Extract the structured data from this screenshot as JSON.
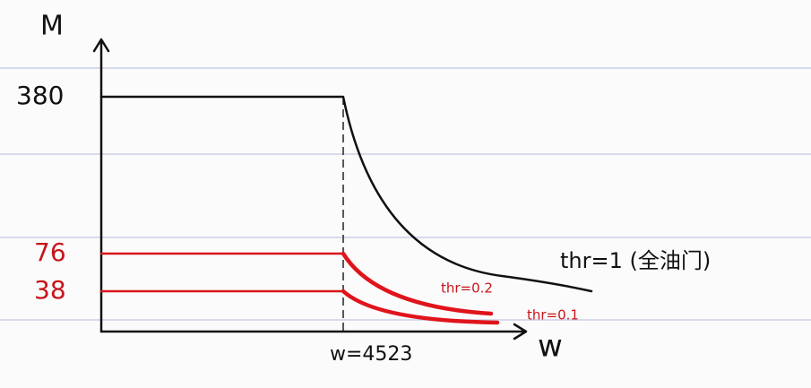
{
  "axes": {
    "y_label": "M",
    "x_label": "w",
    "y_ticks": [
      "380",
      "76",
      "38"
    ],
    "x_marker": "w=4523"
  },
  "curves": [
    {
      "label": "thr=1 (全油门)"
    },
    {
      "label": "thr=0.2"
    },
    {
      "label": "thr=0.1"
    }
  ]
}
